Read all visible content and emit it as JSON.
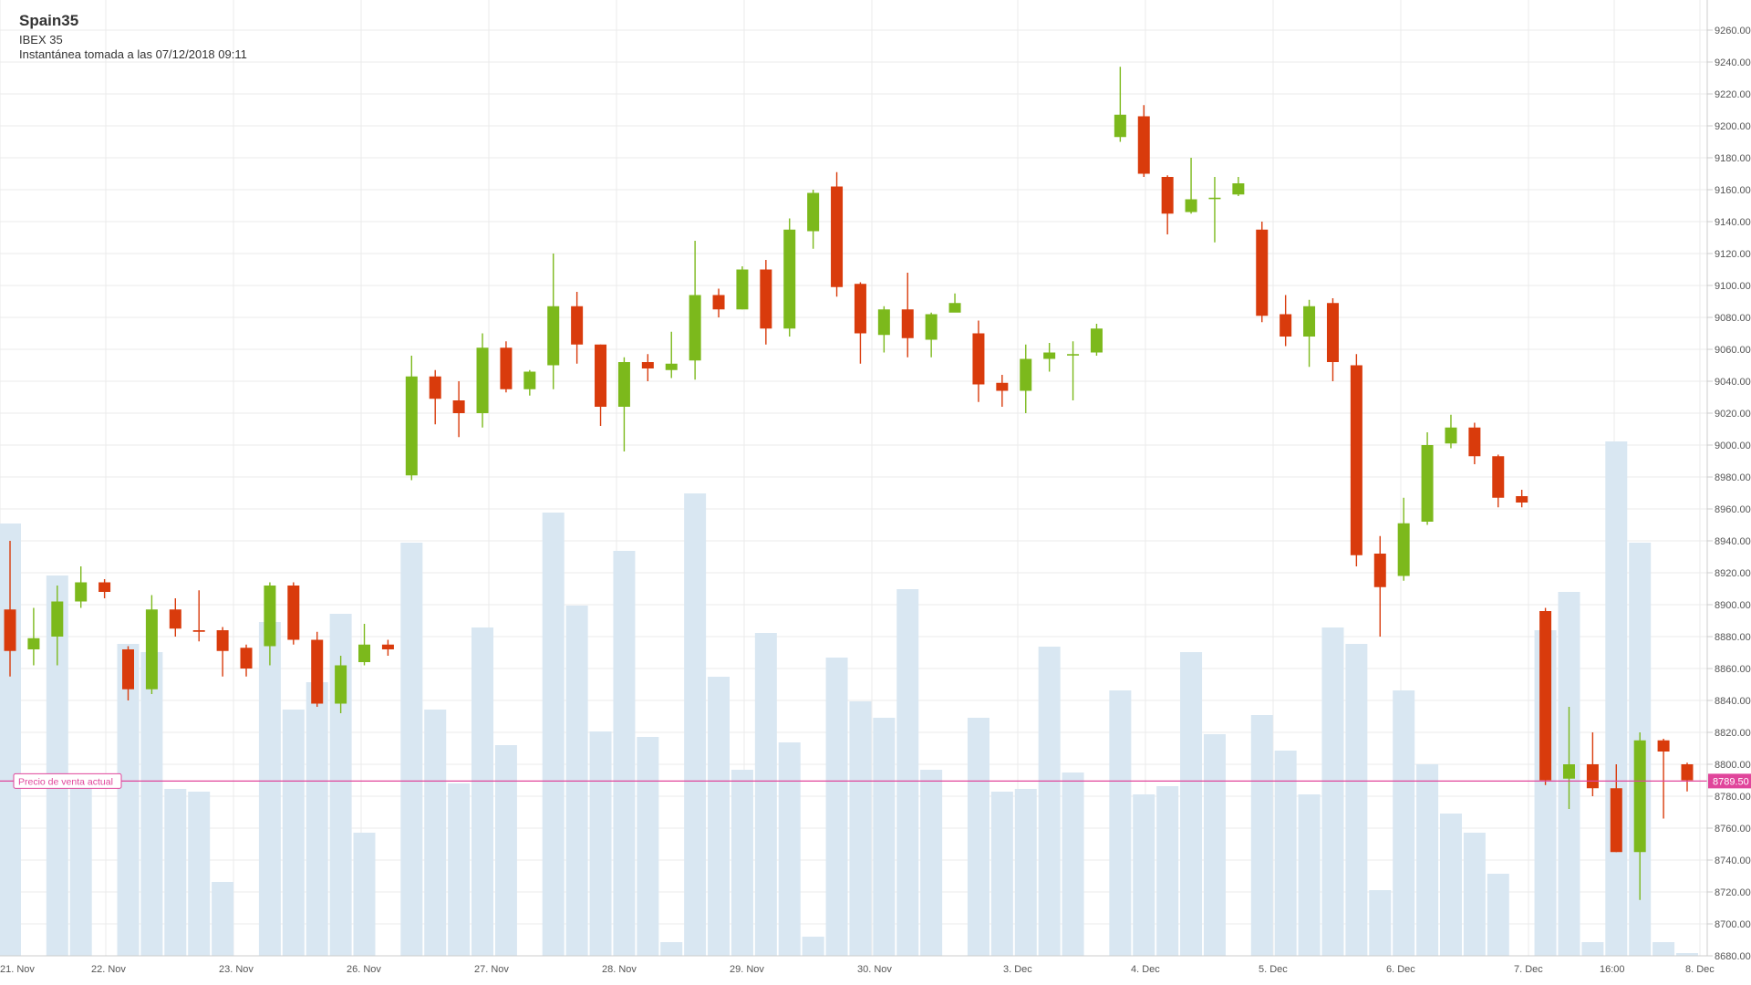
{
  "header": {
    "title": "Spain35",
    "subtitle": "IBEX 35",
    "snapshot": "Instantánea tomada a las 07/12/2018 09:11"
  },
  "chart_data": {
    "type": "candlestick",
    "ylim": [
      8680,
      9270
    ],
    "yticks": [
      9260,
      9240,
      9220,
      9200,
      9180,
      9160,
      9140,
      9120,
      9100,
      9080,
      9060,
      9040,
      9020,
      9000,
      8980,
      8960,
      8940,
      8920,
      8900,
      8880,
      8860,
      8840,
      8820,
      8800,
      8780,
      8760,
      8740,
      8720,
      8700,
      8680
    ],
    "ytick_labels": [
      "9260.00",
      "9240.00",
      "9220.00",
      "9200.00",
      "9180.00",
      "9160.00",
      "9140.00",
      "9120.00",
      "9100.00",
      "9080.00",
      "9060.00",
      "9040.00",
      "9020.00",
      "9000.00",
      "8980.00",
      "8960.00",
      "8940.00",
      "8920.00",
      "8900.00",
      "8880.00",
      "8860.00",
      "8840.00",
      "8820.00",
      "8800.00",
      "8780.00",
      "8760.00",
      "8740.00",
      "8720.00",
      "8700.00",
      "8680.00"
    ],
    "x_labels": [
      "21. Nov",
      "22. Nov",
      "23. Nov",
      "26. Nov",
      "27. Nov",
      "28. Nov",
      "29. Nov",
      "30. Nov",
      "3. Dec",
      "4. Dec",
      "5. Dec",
      "6. Dec",
      "7. Dec",
      "16:00",
      "8. Dec"
    ],
    "up_color": "#7cb91c",
    "down_color": "#d93b0c",
    "volume_color": "#d9e7f2",
    "current_price": {
      "label": "Precio de venta actual",
      "value": 8789.5,
      "value_label": "8789.50",
      "color": "#e0459b"
    },
    "candles": [
      [
        8897,
        8871,
        8940,
        8855
      ],
      [
        8872,
        8879,
        8898,
        8862
      ],
      [
        8880,
        8902,
        8912,
        8862
      ],
      [
        8902,
        8914,
        8924,
        8898
      ],
      [
        8914,
        8908,
        8916,
        8904
      ],
      [
        8872,
        8847,
        8874,
        8840
      ],
      [
        8847,
        8897,
        8906,
        8844
      ],
      [
        8897,
        8885,
        8904,
        8880
      ],
      [
        8884,
        8883,
        8909,
        8877
      ],
      [
        8884,
        8871,
        8886,
        8855
      ],
      [
        8873,
        8860,
        8875,
        8855
      ],
      [
        8874,
        8912,
        8914,
        8862
      ],
      [
        8912,
        8878,
        8914,
        8875
      ],
      [
        8878,
        8838,
        8883,
        8836
      ],
      [
        8838,
        8862,
        8868,
        8832
      ],
      [
        8864,
        8875,
        8888,
        8862
      ],
      [
        8875,
        8872,
        8878,
        8868
      ],
      [
        8981,
        9043,
        9056,
        8978
      ],
      [
        9043,
        9029,
        9047,
        9013
      ],
      [
        9028,
        9020,
        9040,
        9005
      ],
      [
        9020,
        9061,
        9070,
        9011
      ],
      [
        9061,
        9035,
        9065,
        9033
      ],
      [
        9035,
        9046,
        9047,
        9031
      ],
      [
        9050,
        9087,
        9120,
        9035
      ],
      [
        9087,
        9063,
        9096,
        9051
      ],
      [
        9063,
        9024,
        9063,
        9012
      ],
      [
        9024,
        9052,
        9055,
        8996
      ],
      [
        9052,
        9048,
        9057,
        9040
      ],
      [
        9047,
        9051,
        9071,
        9042
      ],
      [
        9053,
        9094,
        9128,
        9041
      ],
      [
        9094,
        9085,
        9098,
        9080
      ],
      [
        9085,
        9110,
        9112,
        9085
      ],
      [
        9110,
        9073,
        9116,
        9063
      ],
      [
        9073,
        9135,
        9142,
        9068
      ],
      [
        9134,
        9158,
        9160,
        9123
      ],
      [
        9162,
        9099,
        9171,
        9093
      ],
      [
        9101,
        9070,
        9102,
        9051
      ],
      [
        9069,
        9085,
        9087,
        9058
      ],
      [
        9085,
        9067,
        9108,
        9055
      ],
      [
        9066,
        9082,
        9083,
        9055
      ],
      [
        9083,
        9089,
        9095,
        9085
      ],
      [
        9070,
        9038,
        9078,
        9027
      ],
      [
        9039,
        9034,
        9044,
        9024
      ],
      [
        9034,
        9054,
        9063,
        9020
      ],
      [
        9054,
        9058,
        9064,
        9046
      ],
      [
        9057,
        9057,
        9065,
        9028
      ],
      [
        9058,
        9073,
        9076,
        9056
      ],
      [
        9193,
        9207,
        9237,
        9190
      ],
      [
        9206,
        9170,
        9213,
        9168
      ],
      [
        9168,
        9145,
        9169,
        9132
      ],
      [
        9146,
        9154,
        9180,
        9145
      ],
      [
        9155,
        9155,
        9168,
        9127
      ],
      [
        9157,
        9164,
        9168,
        9156
      ],
      [
        9135,
        9081,
        9140,
        9077
      ],
      [
        9082,
        9068,
        9094,
        9062
      ],
      [
        9068,
        9087,
        9091,
        9049
      ],
      [
        9089,
        9052,
        9092,
        9040
      ],
      [
        9050,
        8931,
        9057,
        8924
      ],
      [
        8932,
        8911,
        8943,
        8880
      ],
      [
        8918,
        8951,
        8967,
        8915
      ],
      [
        8952,
        9000,
        9008,
        8950
      ],
      [
        9001,
        9011,
        9019,
        8998
      ],
      [
        9011,
        8993,
        9014,
        8988
      ],
      [
        8993,
        8967,
        8994,
        8961
      ],
      [
        8968,
        8964,
        8972,
        8961
      ],
      [
        8896,
        8790,
        8898,
        8787
      ],
      [
        8791,
        8800,
        8836,
        8772
      ],
      [
        8800,
        8785,
        8820,
        8780
      ],
      [
        8785,
        8745,
        8800,
        8745
      ],
      [
        8745,
        8815,
        8820,
        8715
      ],
      [
        8815,
        8808,
        8816,
        8766
      ],
      [
        8800,
        8790,
        8801,
        8783
      ]
    ],
    "volume": [
      158,
      0,
      139,
      65,
      0,
      114,
      111,
      61,
      60,
      27,
      0,
      122,
      90,
      100,
      125,
      45,
      0,
      151,
      90,
      63,
      120,
      77,
      0,
      162,
      128,
      82,
      148,
      80,
      5,
      169,
      102,
      68,
      118,
      78,
      7,
      109,
      93,
      87,
      134,
      68,
      0,
      87,
      60,
      61,
      113,
      67,
      0,
      97,
      59,
      62,
      111,
      81,
      0,
      88,
      75,
      59,
      120,
      114,
      24,
      97,
      70,
      52,
      45,
      30,
      0,
      119,
      133,
      5,
      188,
      151,
      5,
      1
    ]
  }
}
